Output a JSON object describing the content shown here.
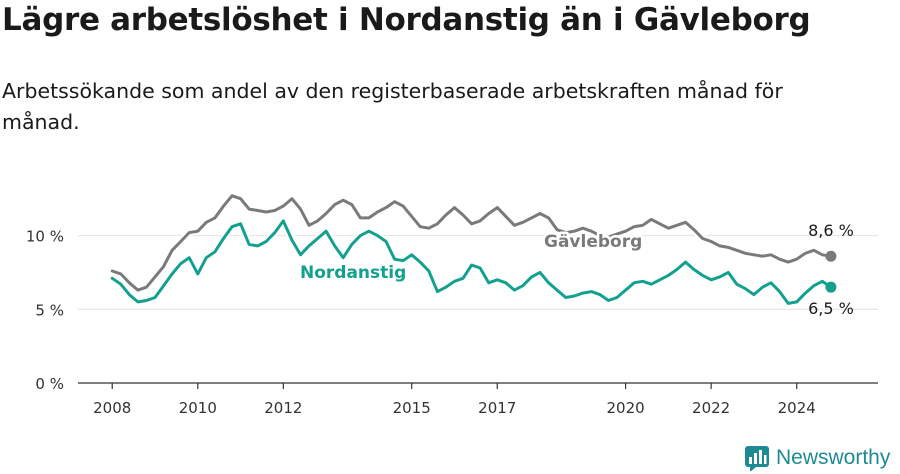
{
  "title": "Lägre arbetslöshet i Nordanstig än i Gävleborg",
  "subtitle": "Arbetssökande som andel av den registerbaserade arbetskraften månad för månad.",
  "brand": {
    "name": "Newsworthy",
    "color": "#1f8a95"
  },
  "chart_data": {
    "type": "line",
    "title": "Lägre arbetslöshet i Nordanstig än i Gävleborg",
    "subtitle": "Arbetssökande som andel av den registerbaserade arbetskraften månad för månad.",
    "xlabel": "",
    "ylabel": "",
    "xlim": [
      2007.2,
      2025.9
    ],
    "ylim": [
      0,
      13.5
    ],
    "x_ticks": [
      {
        "value": 2008,
        "label": "2008"
      },
      {
        "value": 2010,
        "label": "2010"
      },
      {
        "value": 2012,
        "label": "2012"
      },
      {
        "value": 2015,
        "label": "2015"
      },
      {
        "value": 2017,
        "label": "2017"
      },
      {
        "value": 2020,
        "label": "2020"
      },
      {
        "value": 2022,
        "label": "2022"
      },
      {
        "value": 2024,
        "label": "2024"
      }
    ],
    "y_ticks": [
      {
        "value": 0,
        "label": "0 %"
      },
      {
        "value": 5,
        "label": "5 %"
      },
      {
        "value": 10,
        "label": "10 %"
      }
    ],
    "grid": true,
    "legend": "inline labels",
    "series": [
      {
        "name": "Gävleborg",
        "color": "#7a7a7a",
        "end_label": "8,6 %",
        "points": [
          [
            2008.0,
            7.6
          ],
          [
            2008.2,
            7.4
          ],
          [
            2008.4,
            6.8
          ],
          [
            2008.6,
            6.3
          ],
          [
            2008.8,
            6.5
          ],
          [
            2009.0,
            7.2
          ],
          [
            2009.2,
            7.9
          ],
          [
            2009.4,
            9.0
          ],
          [
            2009.6,
            9.6
          ],
          [
            2009.8,
            10.2
          ],
          [
            2010.0,
            10.3
          ],
          [
            2010.2,
            10.9
          ],
          [
            2010.4,
            11.2
          ],
          [
            2010.6,
            12.0
          ],
          [
            2010.8,
            12.7
          ],
          [
            2011.0,
            12.5
          ],
          [
            2011.2,
            11.8
          ],
          [
            2011.4,
            11.7
          ],
          [
            2011.6,
            11.6
          ],
          [
            2011.8,
            11.7
          ],
          [
            2012.0,
            12.0
          ],
          [
            2012.2,
            12.5
          ],
          [
            2012.4,
            11.8
          ],
          [
            2012.6,
            10.7
          ],
          [
            2012.8,
            11.0
          ],
          [
            2013.0,
            11.5
          ],
          [
            2013.2,
            12.1
          ],
          [
            2013.4,
            12.4
          ],
          [
            2013.6,
            12.1
          ],
          [
            2013.8,
            11.2
          ],
          [
            2014.0,
            11.2
          ],
          [
            2014.2,
            11.6
          ],
          [
            2014.4,
            11.9
          ],
          [
            2014.6,
            12.3
          ],
          [
            2014.8,
            12.0
          ],
          [
            2015.0,
            11.3
          ],
          [
            2015.2,
            10.6
          ],
          [
            2015.4,
            10.5
          ],
          [
            2015.6,
            10.8
          ],
          [
            2015.8,
            11.4
          ],
          [
            2016.0,
            11.9
          ],
          [
            2016.2,
            11.4
          ],
          [
            2016.4,
            10.8
          ],
          [
            2016.6,
            11.0
          ],
          [
            2016.8,
            11.5
          ],
          [
            2017.0,
            11.9
          ],
          [
            2017.2,
            11.3
          ],
          [
            2017.4,
            10.7
          ],
          [
            2017.6,
            10.9
          ],
          [
            2017.8,
            11.2
          ],
          [
            2018.0,
            11.5
          ],
          [
            2018.2,
            11.2
          ],
          [
            2018.4,
            10.4
          ],
          [
            2018.6,
            10.2
          ],
          [
            2018.8,
            10.3
          ],
          [
            2019.0,
            10.5
          ],
          [
            2019.2,
            10.3
          ],
          [
            2019.4,
            10.0
          ],
          [
            2019.6,
            9.9
          ],
          [
            2019.8,
            10.1
          ],
          [
            2020.0,
            10.3
          ],
          [
            2020.2,
            10.6
          ],
          [
            2020.4,
            10.7
          ],
          [
            2020.6,
            11.1
          ],
          [
            2020.8,
            10.8
          ],
          [
            2021.0,
            10.5
          ],
          [
            2021.2,
            10.7
          ],
          [
            2021.4,
            10.9
          ],
          [
            2021.6,
            10.4
          ],
          [
            2021.8,
            9.8
          ],
          [
            2022.0,
            9.6
          ],
          [
            2022.2,
            9.3
          ],
          [
            2022.4,
            9.2
          ],
          [
            2022.6,
            9.0
          ],
          [
            2022.8,
            8.8
          ],
          [
            2023.0,
            8.7
          ],
          [
            2023.2,
            8.6
          ],
          [
            2023.4,
            8.7
          ],
          [
            2023.6,
            8.4
          ],
          [
            2023.8,
            8.2
          ],
          [
            2024.0,
            8.4
          ],
          [
            2024.2,
            8.8
          ],
          [
            2024.4,
            9.0
          ],
          [
            2024.6,
            8.7
          ],
          [
            2024.8,
            8.6
          ]
        ]
      },
      {
        "name": "Nordanstig",
        "color": "#13a08f",
        "end_label": "6,5 %",
        "points": [
          [
            2008.0,
            7.1
          ],
          [
            2008.2,
            6.7
          ],
          [
            2008.4,
            6.0
          ],
          [
            2008.6,
            5.5
          ],
          [
            2008.8,
            5.6
          ],
          [
            2009.0,
            5.8
          ],
          [
            2009.2,
            6.6
          ],
          [
            2009.4,
            7.4
          ],
          [
            2009.6,
            8.1
          ],
          [
            2009.8,
            8.5
          ],
          [
            2010.0,
            7.4
          ],
          [
            2010.2,
            8.5
          ],
          [
            2010.4,
            8.9
          ],
          [
            2010.6,
            9.8
          ],
          [
            2010.8,
            10.6
          ],
          [
            2011.0,
            10.8
          ],
          [
            2011.2,
            9.4
          ],
          [
            2011.4,
            9.3
          ],
          [
            2011.6,
            9.6
          ],
          [
            2011.8,
            10.2
          ],
          [
            2012.0,
            11.0
          ],
          [
            2012.2,
            9.7
          ],
          [
            2012.4,
            8.7
          ],
          [
            2012.6,
            9.3
          ],
          [
            2012.8,
            9.8
          ],
          [
            2013.0,
            10.3
          ],
          [
            2013.2,
            9.3
          ],
          [
            2013.4,
            8.5
          ],
          [
            2013.6,
            9.4
          ],
          [
            2013.8,
            10.0
          ],
          [
            2014.0,
            10.3
          ],
          [
            2014.2,
            10.0
          ],
          [
            2014.4,
            9.6
          ],
          [
            2014.6,
            8.4
          ],
          [
            2014.8,
            8.3
          ],
          [
            2015.0,
            8.7
          ],
          [
            2015.2,
            8.2
          ],
          [
            2015.4,
            7.6
          ],
          [
            2015.6,
            6.2
          ],
          [
            2015.8,
            6.5
          ],
          [
            2016.0,
            6.9
          ],
          [
            2016.2,
            7.1
          ],
          [
            2016.4,
            8.0
          ],
          [
            2016.6,
            7.8
          ],
          [
            2016.8,
            6.8
          ],
          [
            2017.0,
            7.0
          ],
          [
            2017.2,
            6.8
          ],
          [
            2017.4,
            6.3
          ],
          [
            2017.6,
            6.6
          ],
          [
            2017.8,
            7.2
          ],
          [
            2018.0,
            7.5
          ],
          [
            2018.2,
            6.8
          ],
          [
            2018.4,
            6.3
          ],
          [
            2018.6,
            5.8
          ],
          [
            2018.8,
            5.9
          ],
          [
            2019.0,
            6.1
          ],
          [
            2019.2,
            6.2
          ],
          [
            2019.4,
            6.0
          ],
          [
            2019.6,
            5.6
          ],
          [
            2019.8,
            5.8
          ],
          [
            2020.0,
            6.3
          ],
          [
            2020.2,
            6.8
          ],
          [
            2020.4,
            6.9
          ],
          [
            2020.6,
            6.7
          ],
          [
            2020.8,
            7.0
          ],
          [
            2021.0,
            7.3
          ],
          [
            2021.2,
            7.7
          ],
          [
            2021.4,
            8.2
          ],
          [
            2021.6,
            7.7
          ],
          [
            2021.8,
            7.3
          ],
          [
            2022.0,
            7.0
          ],
          [
            2022.2,
            7.2
          ],
          [
            2022.4,
            7.5
          ],
          [
            2022.6,
            6.7
          ],
          [
            2022.8,
            6.4
          ],
          [
            2023.0,
            6.0
          ],
          [
            2023.2,
            6.5
          ],
          [
            2023.4,
            6.8
          ],
          [
            2023.6,
            6.2
          ],
          [
            2023.8,
            5.4
          ],
          [
            2024.0,
            5.5
          ],
          [
            2024.2,
            6.1
          ],
          [
            2024.4,
            6.6
          ],
          [
            2024.6,
            6.9
          ],
          [
            2024.8,
            6.5
          ]
        ]
      }
    ]
  }
}
